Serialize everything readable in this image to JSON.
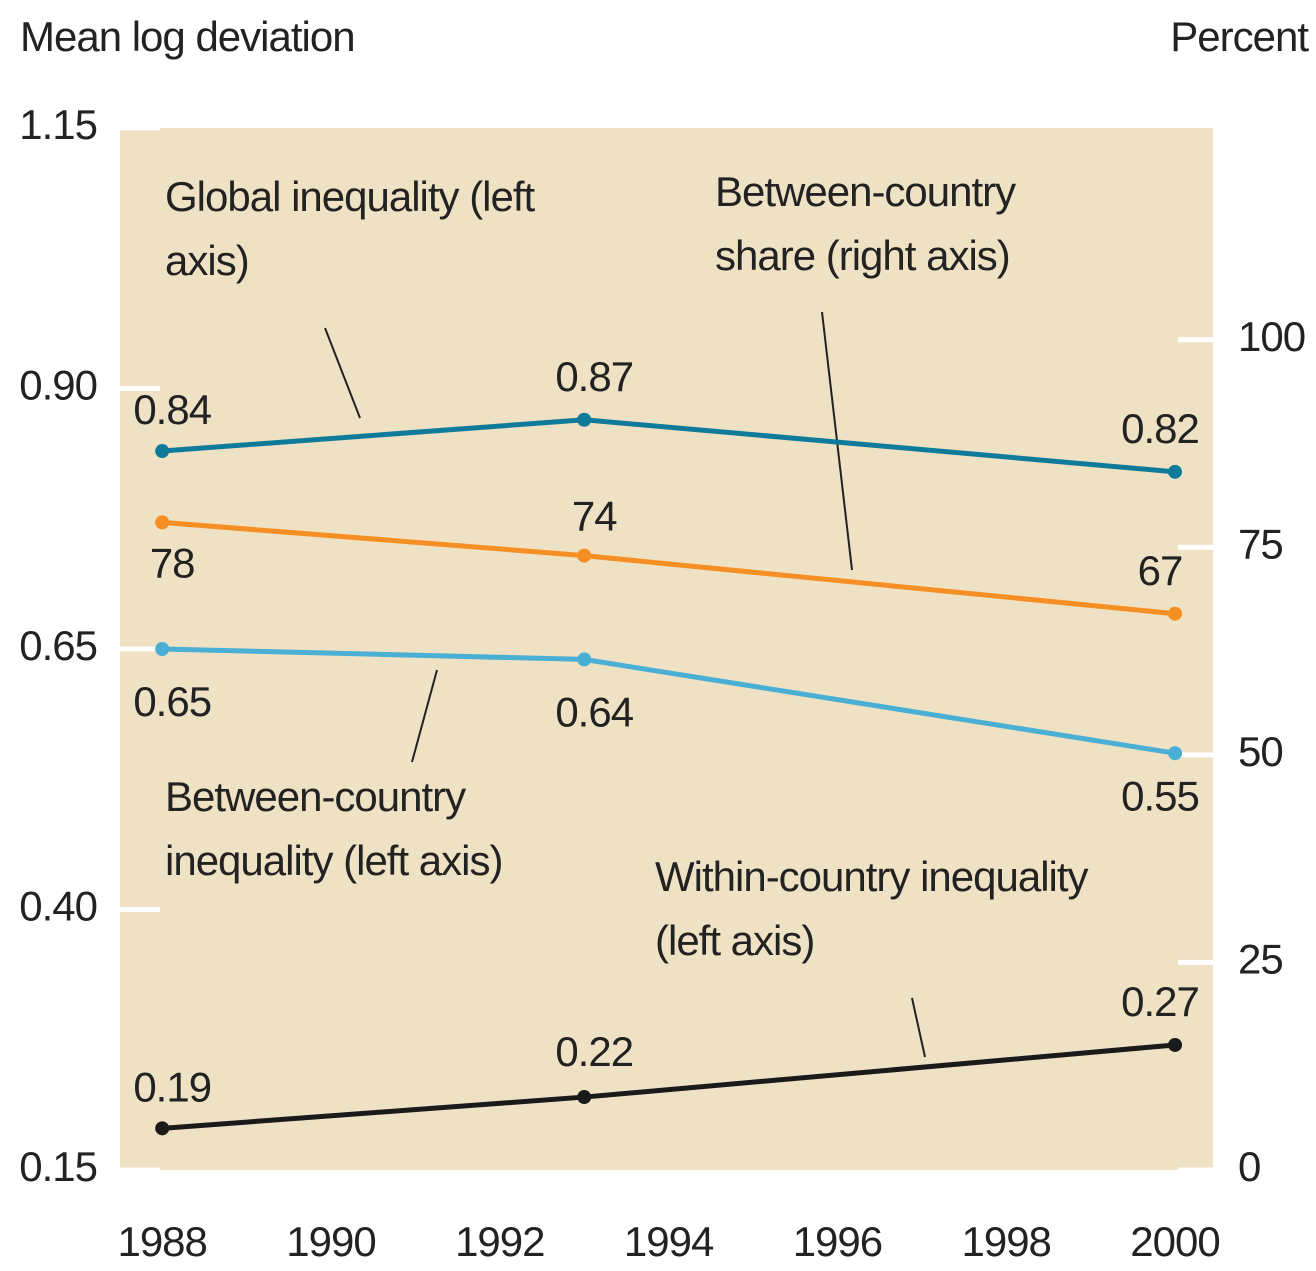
{
  "chart_data": {
    "type": "line",
    "ylabel": "Mean log deviation",
    "y2label": "Percent",
    "x": [
      1988,
      1993,
      2000
    ],
    "xlim": [
      1987.5,
      2000.45
    ],
    "xticks": [
      1988,
      1990,
      1992,
      1994,
      1996,
      1998,
      2000
    ],
    "ylim": [
      0.15,
      1.15
    ],
    "yticks": [
      0.15,
      {
        "value": 0.4,
        "label": "0.40"
      },
      0.65,
      {
        "value": 0.9,
        "label": "0.90"
      },
      1.15
    ],
    "y2lim": [
      0,
      125.5
    ],
    "y2ticks": [
      0,
      25,
      50,
      75,
      100
    ],
    "grid": false,
    "series": [
      {
        "name": "Global inequality (left axis)",
        "color": "#0f7b9a",
        "values": [
          0.84,
          0.87,
          0.82
        ]
      },
      {
        "name": "Between-country share (right axis)",
        "color": "#f58f23",
        "axis": "y2",
        "values": [
          78,
          74,
          67
        ]
      },
      {
        "name": "Between-country inequality (left axis)",
        "color": "#4aafd4",
        "values": [
          0.65,
          0.64,
          0.55
        ]
      },
      {
        "name": "Within-country inequality (left axis)",
        "color": "#1a1a1a",
        "values": [
          0.19,
          0.22,
          0.27
        ]
      }
    ]
  }
}
